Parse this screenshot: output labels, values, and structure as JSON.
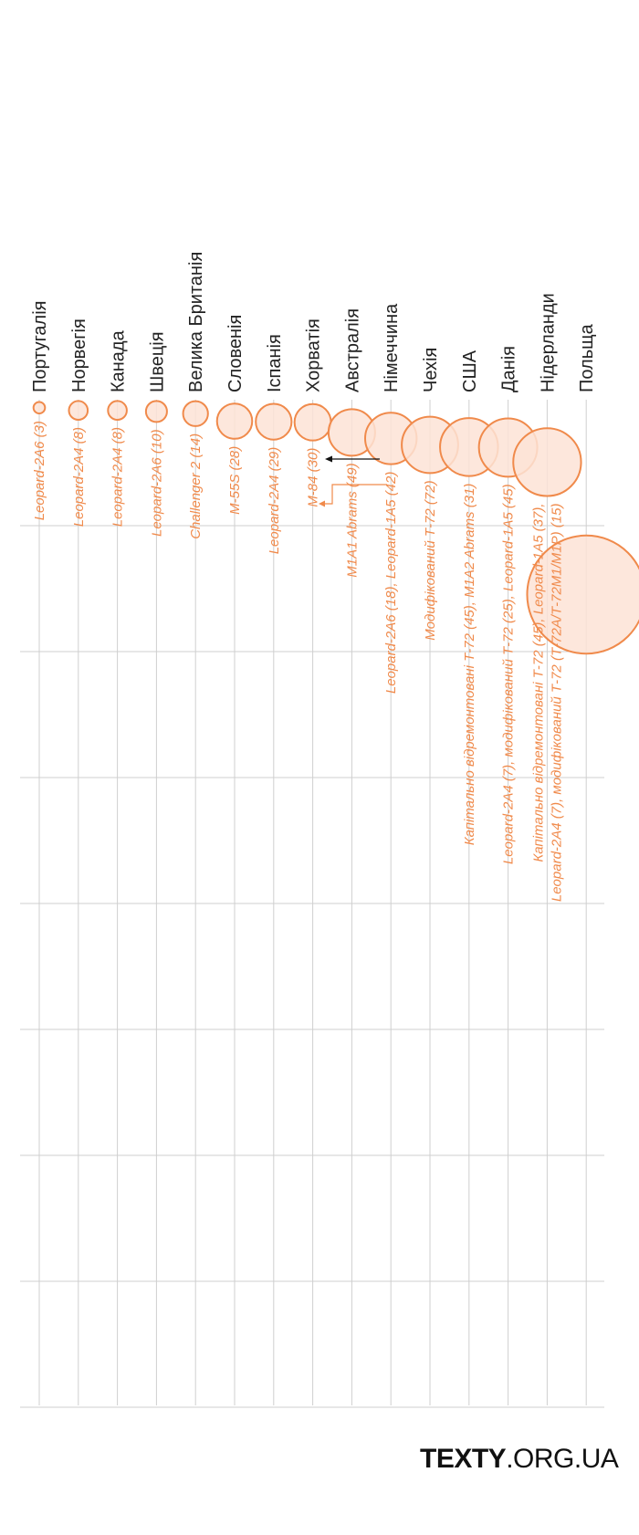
{
  "chart_data": {
    "type": "bubble",
    "title": "",
    "orientation": "rotated",
    "colors": {
      "bubble_fill": "#fde3d6",
      "bubble_stroke": "#f08a4b",
      "label": "#f08a4b",
      "grid": "#cfcfcf",
      "text": "#222222"
    },
    "categories": [
      "Португалія",
      "Норвегія",
      "Канада",
      "Швеція",
      "Велика Британія",
      "Словенія",
      "Іспанія",
      "Хорватія",
      "Австралія",
      "Німеччина",
      "Чехія",
      "США",
      "Данія",
      "Нідерланди",
      "Польща"
    ],
    "points": [
      {
        "country": "Португалія",
        "x": 3,
        "size": 3,
        "labels": [
          "Leopard-2A6 (3)"
        ]
      },
      {
        "country": "Норвегія",
        "x": 8,
        "size": 8,
        "labels": [
          "Leopard-2A4 (8)"
        ]
      },
      {
        "country": "Канада",
        "x": 8,
        "size": 8,
        "labels": [
          "Leopard-2A4 (8)"
        ]
      },
      {
        "country": "Швеція",
        "x": 10,
        "size": 10,
        "labels": [
          "Leopard-2A6 (10)"
        ]
      },
      {
        "country": "Велика Британія",
        "x": 14,
        "size": 14,
        "labels": [
          "Challenger 2 (14)"
        ]
      },
      {
        "country": "Словенія",
        "x": 28,
        "size": 28,
        "labels": [
          "M-55S (28)"
        ]
      },
      {
        "country": "Іспанія",
        "x": 29,
        "size": 29,
        "labels": [
          "Leopard-2A4 (29)"
        ]
      },
      {
        "country": "Хорватія",
        "x": 30,
        "size": 30,
        "labels": [
          "M-84 (30)"
        ]
      },
      {
        "country": "Австралія",
        "x": 49,
        "size": 49,
        "labels": [
          "M1A1 Abrams (49)"
        ]
      },
      {
        "country": "Німеччина",
        "x": 60,
        "size": 60,
        "labels": [
          "Leopard-2A6 (18), Leopard-1A5 (42)"
        ]
      },
      {
        "country": "Чехія",
        "x": 72,
        "size": 72,
        "labels": [
          "Модифікований Т-72 (72)"
        ]
      },
      {
        "country": "США",
        "x": 76,
        "size": 76,
        "labels": [
          "Капітально відремонтовані Т-72 (45), M1A2 Abrams (31)"
        ]
      },
      {
        "country": "Данія",
        "x": 77,
        "size": 77,
        "labels": [
          "Leopard-2A4 (7), модифікований Т-72 (25), Leopard-1A5 (45)"
        ]
      },
      {
        "country": "Нідерланди",
        "x": 104,
        "size": 104,
        "labels": [
          "Капітально відремонтовані Т-72 (45), Leopard-1A5 (37),",
          "Leopard-2A4 (7), модифікований Т-72 (Т-72А/Т-72М1/М1Р) (15)"
        ]
      },
      {
        "country": "Польща",
        "x": 350,
        "size": 350,
        "labels": []
      }
    ]
  },
  "brand": {
    "bold": "TEXTY",
    "rest": ".ORG.UA"
  }
}
